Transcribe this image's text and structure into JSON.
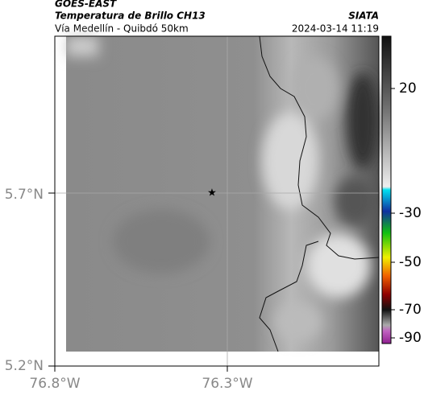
{
  "header": {
    "source": "GOES-EAST",
    "product": "Temperatura de Brillo CH13",
    "route": "Vía Medellín - Quibdó 50km",
    "org": "SIATA",
    "timestamp": "2024-03-14 11:19"
  },
  "axes": {
    "lat_ticks": [
      "5.7°N",
      "5.2°N"
    ],
    "lon_ticks": [
      "76.8°W",
      "76.3°W"
    ]
  },
  "colorbar": {
    "ticks": [
      "20",
      "-30",
      "-50",
      "-70",
      "-90"
    ]
  }
}
